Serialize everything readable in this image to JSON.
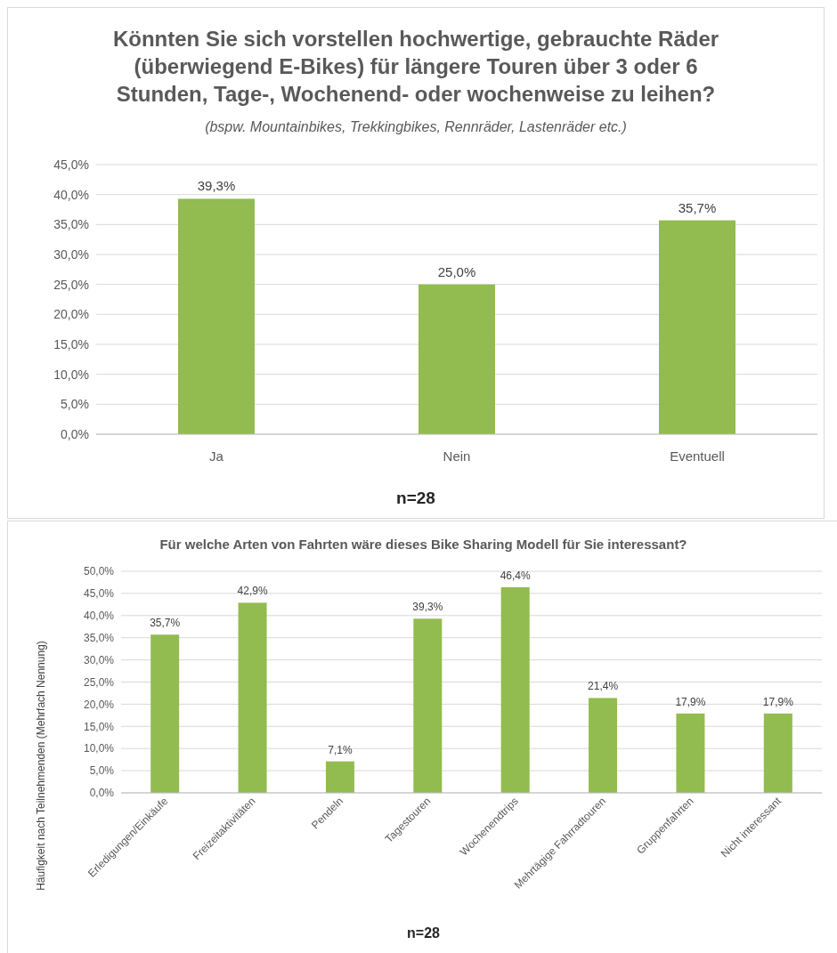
{
  "chart_data": [
    {
      "type": "bar",
      "title": "Könnten Sie sich vorstellen hochwertige, gebrauchte Räder (überwiegend E-Bikes) für längere Touren über 3 oder 6 Stunden, Tage-, Wochenend- oder wochenweise zu leihen?",
      "subtitle": "(bspw. Mountainbikes, Trekkingbikes, Rennräder, Lastenräder etc.)",
      "categories": [
        "Ja",
        "Nein",
        "Eventuell"
      ],
      "values": [
        39.3,
        25.0,
        35.7
      ],
      "value_labels": [
        "39,3%",
        "25,0%",
        "35,7%"
      ],
      "color": "#92bc4f",
      "ylim": [
        0,
        45
      ],
      "yticks": [
        {
          "value": 0,
          "label": "0,0%"
        },
        {
          "value": 5,
          "label": "5,0%"
        },
        {
          "value": 10,
          "label": "10,0%"
        },
        {
          "value": 15,
          "label": "15,0%"
        },
        {
          "value": 20,
          "label": "20,0%"
        },
        {
          "value": 25,
          "label": "25,0%"
        },
        {
          "value": 30,
          "label": "30,0%"
        },
        {
          "value": 35,
          "label": "35,0%"
        },
        {
          "value": 40,
          "label": "40,0%"
        },
        {
          "value": 45,
          "label": "45,0%"
        }
      ],
      "grid": "y",
      "annotations": [
        "n=28"
      ]
    },
    {
      "type": "bar",
      "title": "Für welche Arten von Fahrten wäre dieses Bike Sharing Modell für Sie interessant?",
      "ylabel": "Häufigkeit nach Teilnehmenden (Mehrfach Nennung)",
      "categories": [
        "Erledigungen/Einkäufe",
        "Freizeitaktivitäten",
        "Pendeln",
        "Tagestouren",
        "Wochenendtrips",
        "Mehrtägige Fahrradtouren",
        "Gruppenfahrten",
        "Nicht interessant"
      ],
      "values": [
        35.7,
        42.9,
        7.1,
        39.3,
        46.4,
        21.4,
        17.9,
        17.9
      ],
      "value_labels": [
        "35,7%",
        "42,9%",
        "7,1%",
        "39,3%",
        "46,4%",
        "21,4%",
        "17,9%",
        "17,9%"
      ],
      "color": "#92bc4f",
      "ylim": [
        0,
        50
      ],
      "yticks": [
        {
          "value": 0,
          "label": "0,0%"
        },
        {
          "value": 5,
          "label": "5,0%"
        },
        {
          "value": 10,
          "label": "10,0%"
        },
        {
          "value": 15,
          "label": "15,0%"
        },
        {
          "value": 20,
          "label": "20,0%"
        },
        {
          "value": 25,
          "label": "25,0%"
        },
        {
          "value": 30,
          "label": "30,0%"
        },
        {
          "value": 35,
          "label": "35,0%"
        },
        {
          "value": 40,
          "label": "40,0%"
        },
        {
          "value": 45,
          "label": "45,0%"
        },
        {
          "value": 50,
          "label": "50,0%"
        }
      ],
      "grid": "y",
      "annotations": [
        "n=28"
      ]
    }
  ]
}
